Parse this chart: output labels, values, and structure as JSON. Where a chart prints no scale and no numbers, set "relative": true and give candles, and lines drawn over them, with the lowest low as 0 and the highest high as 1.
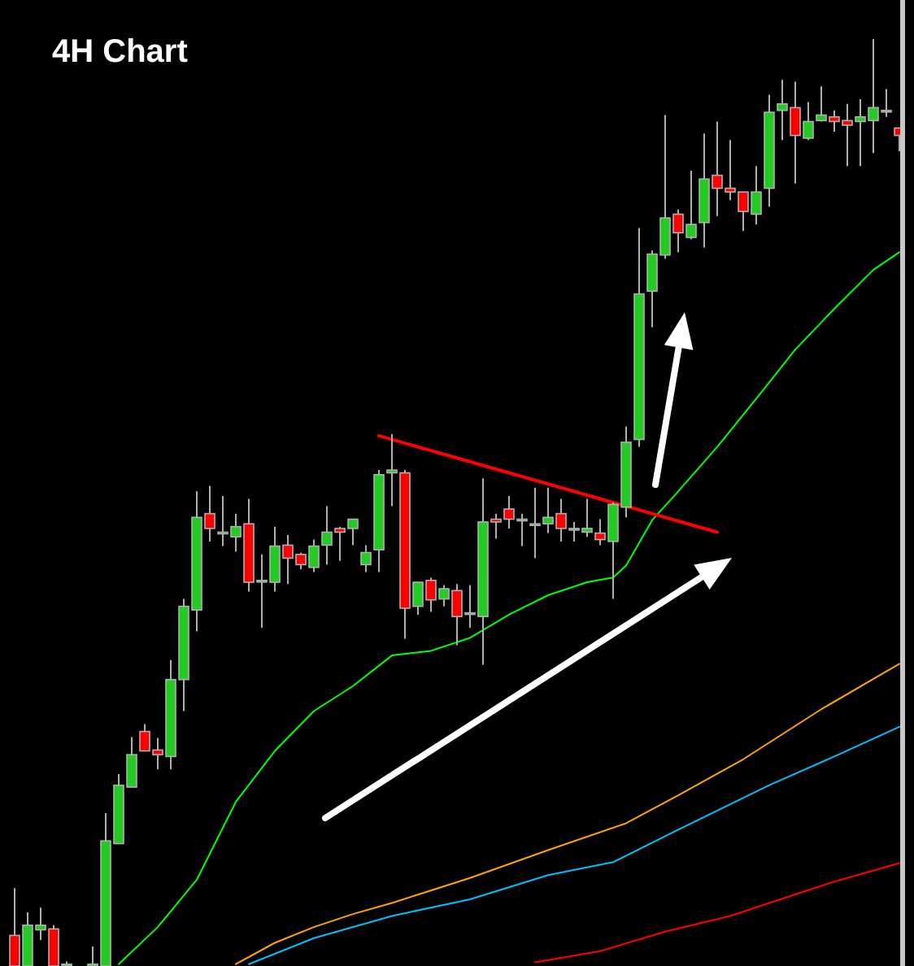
{
  "chart_data": {
    "type": "candlestick",
    "title": "4H Chart",
    "relative": true,
    "categories": [
      null,
      null,
      null,
      null,
      null,
      null,
      null,
      null,
      null,
      null,
      null,
      null,
      null,
      null,
      null,
      null,
      null,
      null,
      null,
      null,
      null,
      null,
      null,
      null,
      null,
      null,
      null,
      null,
      null,
      null,
      null,
      null,
      null,
      null,
      null,
      null,
      null,
      null,
      null,
      null,
      null,
      null,
      null,
      null,
      null,
      null,
      null,
      null,
      null,
      null,
      null,
      null,
      null,
      null,
      null,
      null,
      null,
      null,
      null,
      null,
      null,
      null,
      null,
      null,
      null,
      null,
      null,
      null,
      null
    ],
    "ohlc": [
      [
        0.033,
        0.084,
        0,
        0
      ],
      [
        0,
        0.058,
        0,
        0.044
      ],
      [
        0.039,
        0.063,
        0.028,
        0.044
      ],
      [
        0.04,
        0.044,
        0,
        0
      ],
      [
        0.002,
        0.005,
        0,
        0.002
      ],
      null,
      [
        0,
        0.021,
        0,
        0.002
      ],
      [
        0,
        0.165,
        0,
        0.135
      ],
      [
        0.132,
        0.207,
        0.132,
        0.195
      ],
      [
        0.193,
        0.247,
        0.193,
        0.228
      ],
      [
        0.253,
        0.261,
        0.232,
        0.232
      ],
      [
        0.233,
        0.246,
        0.212,
        0.228
      ],
      [
        0.226,
        0.33,
        0.212,
        0.309
      ],
      [
        0.309,
        0.396,
        0.275,
        0.388
      ],
      [
        0.384,
        0.512,
        0.361,
        0.484
      ],
      [
        0.488,
        0.518,
        0.458,
        0.472
      ],
      [
        0.468,
        0.507,
        0.453,
        0.468
      ],
      [
        0.463,
        0.488,
        0.447,
        0.474
      ],
      [
        0.477,
        0.504,
        0.404,
        0.414
      ],
      [
        0.416,
        0.444,
        0.365,
        0.416
      ],
      [
        0.414,
        0.474,
        0.404,
        0.453
      ],
      [
        0.454,
        0.465,
        0.412,
        0.44
      ],
      [
        0.444,
        0.446,
        0.428,
        0.433
      ],
      [
        0.43,
        0.46,
        0.425,
        0.453
      ],
      [
        0.454,
        0.496,
        0.433,
        0.468
      ],
      [
        0.472,
        0.474,
        0.437,
        0.468
      ],
      [
        0.472,
        0.482,
        0.454,
        0.482
      ],
      [
        0.433,
        0.454,
        0.425,
        0.446
      ],
      [
        0.449,
        0.535,
        0.425,
        0.53
      ],
      [
        0.532,
        0.574,
        0.496,
        0.535
      ],
      [
        0.532,
        0.535,
        0.353,
        0.386
      ],
      [
        0.388,
        0.414,
        0.379,
        0.414
      ],
      [
        0.416,
        0.419,
        0.382,
        0.395
      ],
      [
        0.396,
        0.411,
        0.388,
        0.407
      ],
      [
        0.405,
        0.412,
        0.346,
        0.377
      ],
      [
        0.381,
        0.411,
        0.365,
        0.381
      ],
      [
        0.377,
        0.526,
        0.325,
        0.479
      ],
      [
        0.482,
        0.488,
        0.461,
        0.479
      ],
      [
        0.493,
        0.507,
        0.472,
        0.482
      ],
      [
        0.482,
        0.488,
        0.453,
        0.482
      ],
      [
        0.477,
        0.516,
        0.44,
        0.477
      ],
      [
        0.477,
        0.516,
        0.467,
        0.484
      ],
      [
        0.488,
        0.504,
        0.458,
        0.472
      ],
      [
        0.472,
        0.479,
        0.458,
        0.472
      ],
      [
        0.468,
        0.504,
        0.463,
        0.472
      ],
      [
        0.467,
        0.482,
        0.454,
        0.46
      ],
      [
        0.458,
        0.5,
        0.396,
        0.498
      ],
      [
        0.495,
        0.582,
        0.484,
        0.565
      ],
      [
        0.568,
        0.796,
        0.56,
        0.725
      ],
      [
        0.728,
        0.772,
        0.689,
        0.768
      ],
      [
        0.767,
        0.918,
        0.763,
        0.807
      ],
      [
        0.811,
        0.816,
        0.77,
        0.791
      ],
      [
        0.786,
        0.858,
        0.784,
        0.8
      ],
      [
        0.802,
        0.898,
        0.775,
        0.849
      ],
      [
        0.853,
        0.911,
        0.809,
        0.839
      ],
      [
        0.839,
        0.891,
        0.826,
        0.835
      ],
      [
        0.835,
        0.835,
        0.793,
        0.814
      ],
      [
        0.811,
        0.863,
        0.8,
        0.835
      ],
      [
        0.839,
        0.94,
        0.819,
        0.921
      ],
      [
        0.923,
        0.956,
        0.891,
        0.93
      ],
      [
        0.926,
        0.954,
        0.844,
        0.896
      ],
      [
        0.893,
        0.932,
        0.891,
        0.911
      ],
      [
        0.912,
        0.949,
        0.911,
        0.918
      ],
      [
        0.916,
        0.923,
        0.9,
        0.911
      ],
      [
        0.912,
        0.93,
        0.863,
        0.907
      ],
      [
        0.911,
        0.935,
        0.863,
        0.916
      ],
      [
        0.912,
        1,
        0.877,
        0.926
      ],
      [
        0.923,
        0.946,
        0.916,
        0.923
      ],
      [
        0.904,
        0.904,
        0.879,
        0.896
      ]
    ],
    "series": [
      {
        "type": "line",
        "color": "#00ff00",
        "values": [
          null,
          null,
          null,
          null,
          null,
          null,
          null,
          null,
          0.002,
          null,
          null,
          0.042,
          null,
          null,
          0.093,
          null,
          null,
          0.177,
          null,
          null,
          0.232,
          null,
          null,
          0.275,
          null,
          null,
          0.302,
          null,
          null,
          0.335,
          null,
          null,
          0.34,
          null,
          null,
          0.354,
          null,
          null,
          0.379,
          null,
          null,
          0.4,
          null,
          null,
          0.414,
          null,
          0.419,
          0.432,
          null,
          0.481,
          null,
          0.512,
          null,
          null,
          0.56,
          null,
          null,
          0.612,
          null,
          null,
          0.665,
          null,
          null,
          0.709,
          null,
          null,
          0.751,
          null,
          0.77
        ]
      },
      {
        "type": "line",
        "color": "#ffa500",
        "values": [
          null,
          null,
          null,
          null,
          null,
          null,
          null,
          null,
          null,
          null,
          null,
          null,
          null,
          null,
          null,
          null,
          null,
          0.002,
          null,
          null,
          0.025,
          null,
          null,
          0.042,
          null,
          null,
          0.056,
          null,
          null,
          0.068,
          null,
          null,
          null,
          null,
          null,
          0.095,
          null,
          null,
          null,
          null,
          null,
          0.125,
          null,
          null,
          null,
          null,
          null,
          0.154,
          null,
          null,
          null,
          0.184,
          null,
          null,
          null,
          null,
          0.223,
          null,
          null,
          null,
          null,
          null,
          0.277,
          null,
          null,
          null,
          null,
          null,
          0.326
        ]
      },
      {
        "type": "line",
        "color": "#00bfff",
        "values": [
          null,
          null,
          null,
          null,
          null,
          null,
          null,
          null,
          null,
          null,
          null,
          null,
          null,
          null,
          null,
          null,
          null,
          null,
          0.002,
          null,
          null,
          null,
          null,
          0.03,
          null,
          null,
          null,
          null,
          null,
          0.054,
          null,
          null,
          null,
          null,
          null,
          0.072,
          null,
          null,
          null,
          null,
          null,
          0.098,
          null,
          null,
          null,
          null,
          0.112,
          null,
          null,
          null,
          null,
          0.147,
          null,
          null,
          null,
          null,
          null,
          null,
          0.195,
          null,
          null,
          null,
          null,
          0.226,
          null,
          null,
          null,
          null,
          0.258
        ]
      },
      {
        "type": "line",
        "color": "#ff0000",
        "values": [
          null,
          null,
          null,
          null,
          null,
          null,
          null,
          null,
          null,
          null,
          null,
          null,
          null,
          null,
          null,
          null,
          null,
          null,
          null,
          null,
          null,
          null,
          null,
          null,
          null,
          null,
          null,
          null,
          null,
          null,
          null,
          null,
          null,
          null,
          null,
          null,
          null,
          null,
          null,
          null,
          0.004,
          null,
          null,
          null,
          null,
          0.016,
          null,
          null,
          null,
          null,
          0.037,
          null,
          null,
          null,
          null,
          0.054,
          null,
          null,
          0.068,
          null,
          null,
          null,
          null,
          0.091,
          null,
          null,
          null,
          null,
          0.111
        ]
      },
      {
        "type": "line",
        "color": "#ff0000",
        "values": [
          null,
          null,
          null,
          null,
          null,
          null,
          null,
          null,
          null,
          null,
          null,
          null,
          null,
          null,
          null,
          null,
          null,
          null,
          null,
          null,
          null,
          null,
          null,
          null,
          null,
          null,
          null,
          null,
          0.572,
          null,
          null,
          null,
          null,
          null,
          null,
          null,
          null,
          null,
          null,
          null,
          null,
          null,
          null,
          null,
          null,
          null,
          null,
          null,
          null,
          null,
          null,
          null,
          null,
          null,
          0.468,
          null,
          null,
          null,
          null,
          null,
          null,
          null,
          null,
          null,
          null,
          null,
          null,
          null,
          null
        ]
      }
    ]
  }
}
